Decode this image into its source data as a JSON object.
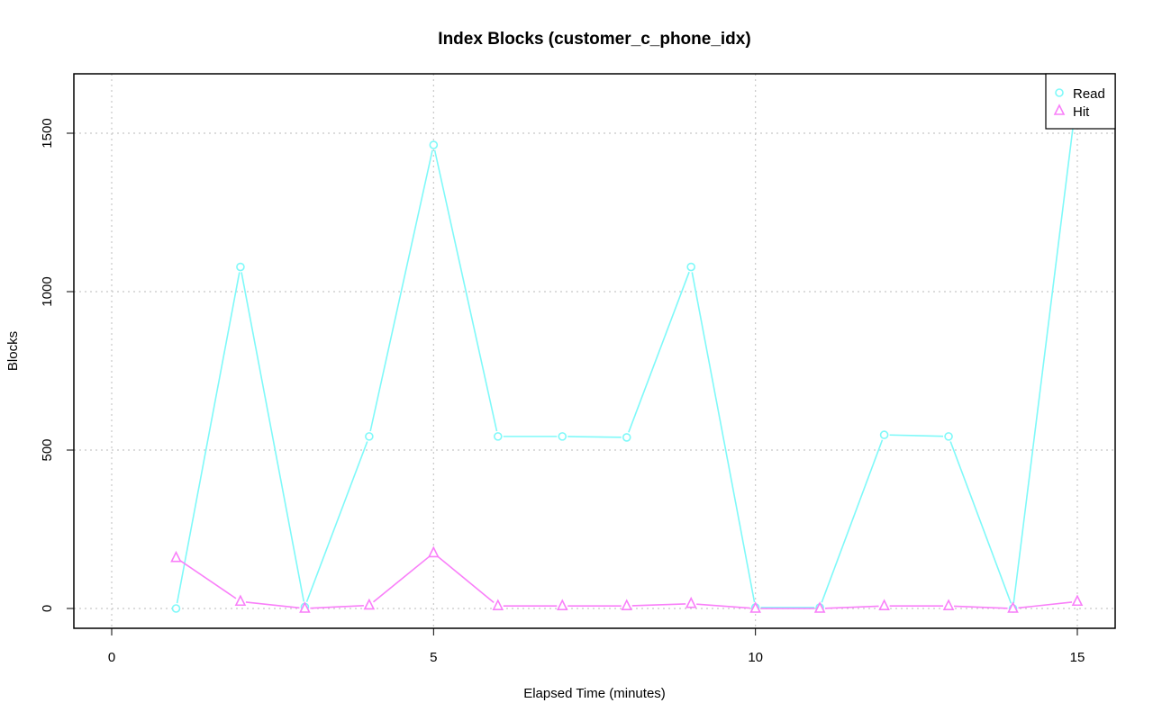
{
  "chart_data": {
    "type": "line",
    "title": "Index Blocks (customer_c_phone_idx)",
    "xlabel": "Elapsed Time (minutes)",
    "ylabel": "Blocks",
    "xlim": [
      0,
      15
    ],
    "ylim": [
      0,
      1600
    ],
    "x_ticks": [
      0,
      5,
      10,
      15
    ],
    "y_ticks": [
      0,
      500,
      1000,
      1500
    ],
    "grid": true,
    "legend_position": "top-right",
    "x": [
      1,
      2,
      3,
      4,
      5,
      6,
      7,
      8,
      9,
      10,
      11,
      12,
      13,
      14,
      15
    ],
    "series": [
      {
        "name": "Read",
        "color": "#7ff9f9",
        "marker": "circle",
        "values": [
          0,
          1078,
          5,
          543,
          1463,
          543,
          543,
          540,
          1078,
          3,
          3,
          548,
          543,
          0,
          1630
        ]
      },
      {
        "name": "Hit",
        "color": "#f97ff9",
        "marker": "triangle",
        "values": [
          160,
          22,
          0,
          10,
          175,
          8,
          8,
          8,
          15,
          0,
          0,
          8,
          8,
          0,
          22
        ]
      }
    ]
  }
}
